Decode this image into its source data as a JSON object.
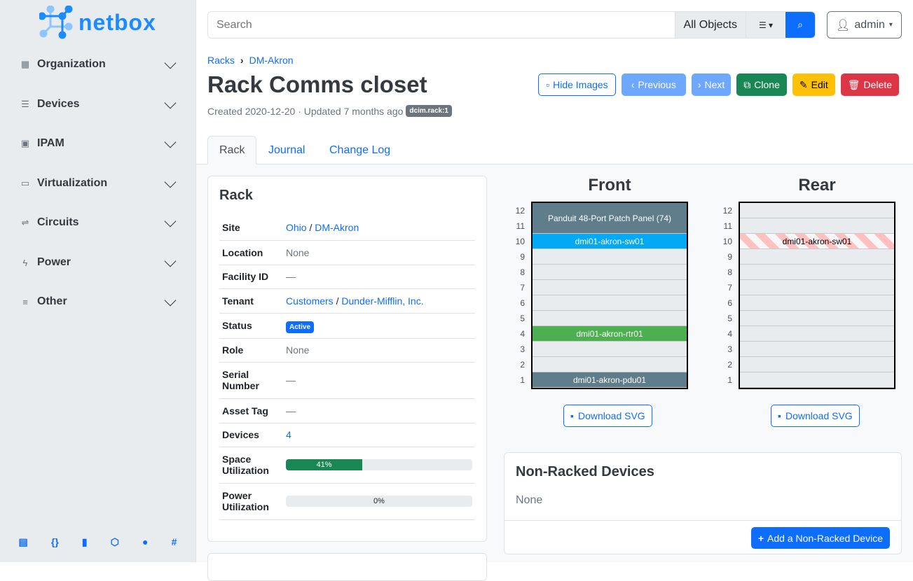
{
  "brand": {
    "name": "netbox",
    "color": "#1a8cff"
  },
  "sidebar": {
    "items": [
      {
        "label": "Organization",
        "icon": "building-icon"
      },
      {
        "label": "Devices",
        "icon": "server-icon"
      },
      {
        "label": "IPAM",
        "icon": "ip-icon"
      },
      {
        "label": "Virtualization",
        "icon": "monitor-icon"
      },
      {
        "label": "Circuits",
        "icon": "circuit-icon"
      },
      {
        "label": "Power",
        "icon": "bolt-icon"
      },
      {
        "label": "Other",
        "icon": "lines-icon"
      }
    ],
    "footer_icons": [
      "book-icon",
      "api-icon",
      "bookmark-icon",
      "graphql-icon",
      "github-icon",
      "slack-icon"
    ]
  },
  "header": {
    "search_placeholder": "Search",
    "object_type": "All Objects",
    "user": "admin"
  },
  "breadcrumb": [
    "Racks",
    "DM-Akron"
  ],
  "page": {
    "title": "Rack Comms closet",
    "meta": "Created 2020-12-20 · Updated 7 months ago",
    "tag": "dcim.rack:1"
  },
  "buttons": {
    "hide_images": "Hide Images",
    "previous": "Previous",
    "next": "Next",
    "clone": "Clone",
    "edit": "Edit",
    "delete": "Delete"
  },
  "tabs": [
    "Rack",
    "Journal",
    "Change Log"
  ],
  "rack_card": {
    "title": "Rack",
    "rows": {
      "site": {
        "label": "Site",
        "parent": "Ohio",
        "value": "DM-Akron"
      },
      "location": {
        "label": "Location",
        "value": "None"
      },
      "facility": {
        "label": "Facility ID",
        "value": "—"
      },
      "tenant": {
        "label": "Tenant",
        "parent": "Customers",
        "value": "Dunder-Mifflin, Inc."
      },
      "status": {
        "label": "Status",
        "value": "Active"
      },
      "role": {
        "label": "Role",
        "value": "None"
      },
      "serial": {
        "label": "Serial Number",
        "value": "—"
      },
      "asset": {
        "label": "Asset Tag",
        "value": "—"
      },
      "devices": {
        "label": "Devices",
        "value": "4"
      },
      "space": {
        "label": "Space Utilization",
        "value": "41%",
        "percent": 41
      },
      "power": {
        "label": "Power Utilization",
        "value": "0%",
        "percent": 0
      }
    }
  },
  "elevations": {
    "front": {
      "title": "Front",
      "units": [
        {
          "u": 12,
          "label": "Panduit 48-Port Patch Panel (74)",
          "span": 2,
          "color": "#607d8b"
        },
        {
          "u": 10,
          "label": "dmi01-akron-sw01",
          "color": "#03a9f4"
        },
        {
          "u": 9
        },
        {
          "u": 8
        },
        {
          "u": 7
        },
        {
          "u": 6
        },
        {
          "u": 5
        },
        {
          "u": 4,
          "label": "dmi01-akron-rtr01",
          "color": "#4caf50"
        },
        {
          "u": 3
        },
        {
          "u": 2
        },
        {
          "u": 1,
          "label": "dmi01-akron-pdu01",
          "color": "#607d8b"
        }
      ]
    },
    "rear": {
      "title": "Rear",
      "units": [
        {
          "u": 12
        },
        {
          "u": 11
        },
        {
          "u": 10,
          "label": "dmi01-akron-sw01",
          "striped": true
        },
        {
          "u": 9
        },
        {
          "u": 8
        },
        {
          "u": 7
        },
        {
          "u": 6
        },
        {
          "u": 5
        },
        {
          "u": 4
        },
        {
          "u": 3
        },
        {
          "u": 2
        },
        {
          "u": 1
        }
      ]
    },
    "download_label": "Download SVG"
  },
  "non_racked": {
    "title": "Non-Racked Devices",
    "value": "None",
    "add_label": "Add a Non-Racked Device"
  }
}
